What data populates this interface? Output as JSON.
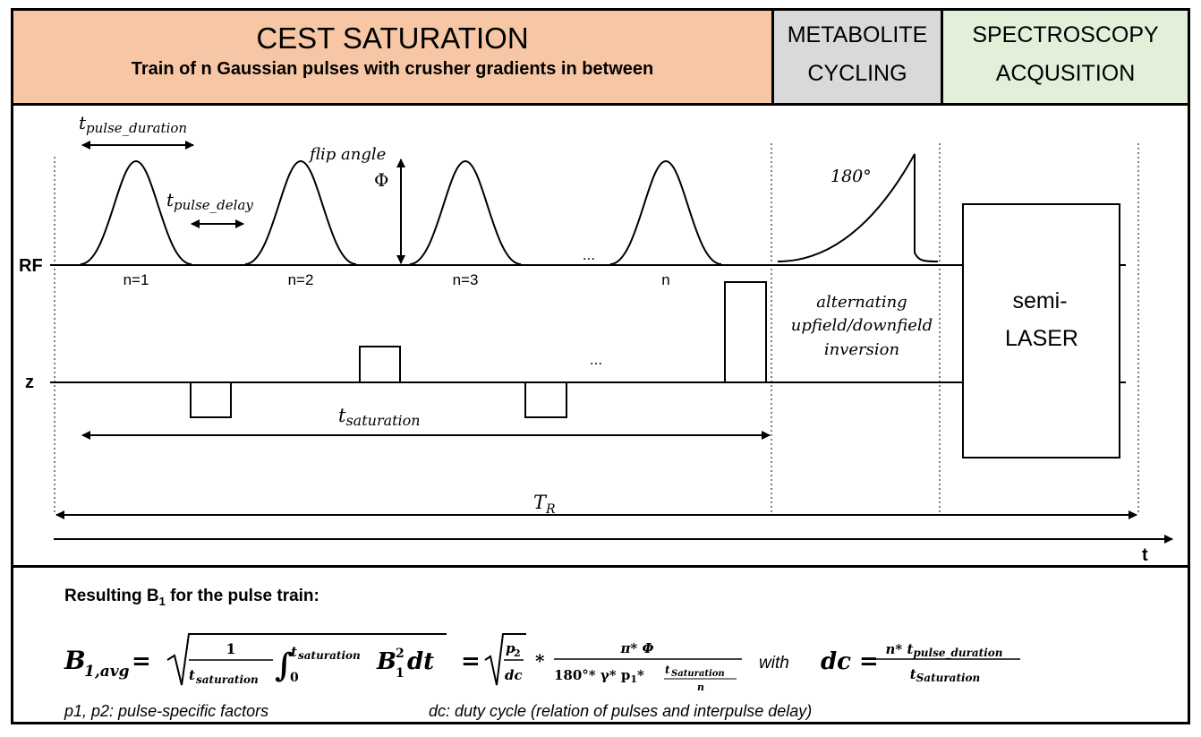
{
  "header": {
    "cest": {
      "title": "CEST SATURATION",
      "subtitle": "Train of n Gaussian pulses with crusher gradients in between"
    },
    "metabolite": {
      "line1": "METABOLITE",
      "line2": "CYCLING"
    },
    "spectroscopy": {
      "line1": "SPECTROSCOPY",
      "line2": "ACQUSITION"
    }
  },
  "diagram": {
    "rf_label": "RF",
    "z_label": "z",
    "t_label": "t",
    "pulse_duration_label": "t",
    "pulse_duration_sub": "pulse_duration",
    "pulse_delay_label": "t",
    "pulse_delay_sub": "pulse_delay",
    "flip_angle_label": "flip angle",
    "phi_label": "Φ",
    "pulse_labels": [
      "n=1",
      "n=2",
      "n=3",
      "n"
    ],
    "ellipsis": "...",
    "inversion_angle": "180°",
    "inversion_text": [
      "alternating",
      "upfield/downfield",
      "inversion"
    ],
    "saturation_label": "t",
    "saturation_sub": "saturation",
    "tr_label": "T",
    "tr_sub": "R",
    "acq_box_line1": "semi-",
    "acq_box_line2": "LASER"
  },
  "formula": {
    "heading": "Resulting B",
    "heading_sub": "1",
    "heading_tail": " for the pulse train:",
    "with_word": "with",
    "note_left": "p1, p2: pulse-specific factors",
    "note_right": "dc: duty cycle (relation of pulses and interpulse delay)"
  }
}
